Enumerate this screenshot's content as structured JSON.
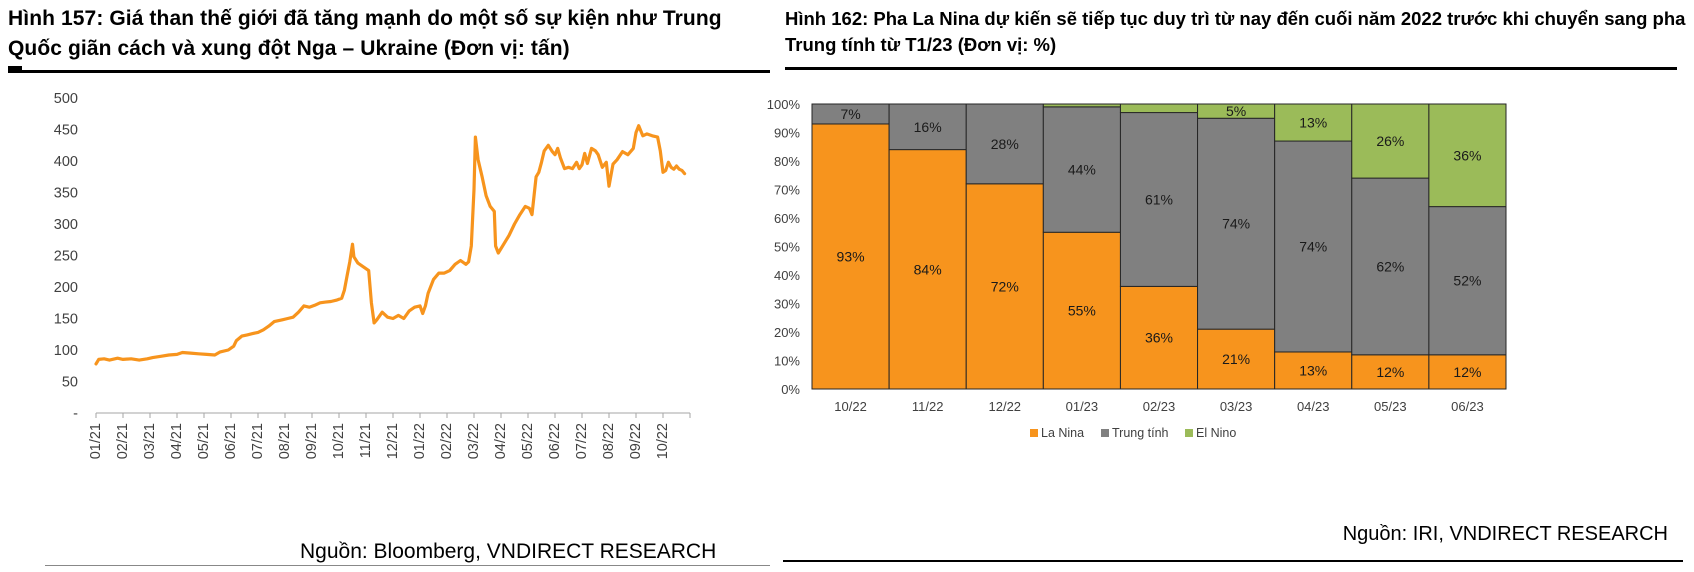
{
  "left": {
    "title": "Hình 157: Giá than thế giới đã tăng mạnh do một số sự kiện như Trung Quốc giãn cách và xung đột Nga – Ukraine (Đơn vị: tấn)",
    "source": "Nguồn: Bloomberg, VNDIRECT RESEARCH"
  },
  "right": {
    "title": "Hình 162: Pha La Nina dự kiến sẽ tiếp tục duy trì từ nay đến cuối năm 2022 trước khi chuyển sang pha Trung tính từ T1/23 (Đơn vị: %)",
    "source": "Nguồn: IRI, VNDIRECT RESEARCH"
  },
  "chart_data": [
    {
      "type": "line",
      "title": "Giá than thế giới",
      "ylabel": "tấn",
      "ylim": [
        0,
        500
      ],
      "y_ticks": [
        "-",
        "50",
        "100",
        "150",
        "200",
        "250",
        "300",
        "350",
        "400",
        "450",
        "500"
      ],
      "y_tick_values": [
        0,
        50,
        100,
        150,
        200,
        250,
        300,
        350,
        400,
        450,
        500
      ],
      "x_ticks": [
        "01/21",
        "02/21",
        "03/21",
        "04/21",
        "05/21",
        "06/21",
        "07/21",
        "08/21",
        "09/21",
        "10/21",
        "11/21",
        "12/21",
        "01/22",
        "02/22",
        "03/22",
        "04/22",
        "05/22",
        "06/22",
        "07/22",
        "08/22",
        "09/22",
        "10/22"
      ],
      "line_color": "#F7941D",
      "series": [
        {
          "name": "Giá than",
          "points": [
            [
              0.0,
              78
            ],
            [
              0.1,
              85
            ],
            [
              0.3,
              86
            ],
            [
              0.5,
              84
            ],
            [
              0.8,
              87
            ],
            [
              1.0,
              85
            ],
            [
              1.3,
              86
            ],
            [
              1.6,
              84
            ],
            [
              1.9,
              86
            ],
            [
              2.1,
              88
            ],
            [
              2.4,
              90
            ],
            [
              2.7,
              92
            ],
            [
              3.0,
              93
            ],
            [
              3.2,
              96
            ],
            [
              3.5,
              95
            ],
            [
              3.8,
              94
            ],
            [
              4.1,
              93
            ],
            [
              4.4,
              92
            ],
            [
              4.6,
              97
            ],
            [
              4.9,
              100
            ],
            [
              5.1,
              106
            ],
            [
              5.2,
              115
            ],
            [
              5.4,
              122
            ],
            [
              5.6,
              124
            ],
            [
              5.8,
              126
            ],
            [
              6.0,
              128
            ],
            [
              6.2,
              132
            ],
            [
              6.4,
              138
            ],
            [
              6.6,
              145
            ],
            [
              6.9,
              148
            ],
            [
              7.1,
              150
            ],
            [
              7.3,
              152
            ],
            [
              7.5,
              160
            ],
            [
              7.7,
              170
            ],
            [
              7.9,
              168
            ],
            [
              8.1,
              171
            ],
            [
              8.3,
              175
            ],
            [
              8.5,
              176
            ],
            [
              8.7,
              177
            ],
            [
              8.9,
              179
            ],
            [
              9.1,
              182
            ],
            [
              9.2,
              195
            ],
            [
              9.3,
              218
            ],
            [
              9.4,
              240
            ],
            [
              9.5,
              268
            ],
            [
              9.55,
              248
            ],
            [
              9.7,
              238
            ],
            [
              9.9,
              232
            ],
            [
              10.1,
              226
            ],
            [
              10.2,
              175
            ],
            [
              10.3,
              143
            ],
            [
              10.4,
              148
            ],
            [
              10.6,
              160
            ],
            [
              10.8,
              152
            ],
            [
              11.0,
              150
            ],
            [
              11.2,
              155
            ],
            [
              11.4,
              150
            ],
            [
              11.6,
              162
            ],
            [
              11.8,
              168
            ],
            [
              12.0,
              170
            ],
            [
              12.1,
              158
            ],
            [
              12.2,
              170
            ],
            [
              12.3,
              190
            ],
            [
              12.5,
              212
            ],
            [
              12.7,
              222
            ],
            [
              12.9,
              222
            ],
            [
              13.1,
              226
            ],
            [
              13.3,
              236
            ],
            [
              13.5,
              242
            ],
            [
              13.7,
              236
            ],
            [
              13.8,
              240
            ],
            [
              13.9,
              265
            ],
            [
              14.0,
              355
            ],
            [
              14.05,
              438
            ],
            [
              14.15,
              402
            ],
            [
              14.3,
              375
            ],
            [
              14.45,
              345
            ],
            [
              14.6,
              328
            ],
            [
              14.75,
              320
            ],
            [
              14.8,
              265
            ],
            [
              14.9,
              254
            ],
            [
              15.1,
              268
            ],
            [
              15.3,
              282
            ],
            [
              15.5,
              300
            ],
            [
              15.7,
              315
            ],
            [
              15.9,
              328
            ],
            [
              16.05,
              325
            ],
            [
              16.15,
              315
            ],
            [
              16.3,
              375
            ],
            [
              16.4,
              382
            ],
            [
              16.5,
              398
            ],
            [
              16.6,
              416
            ],
            [
              16.75,
              425
            ],
            [
              16.9,
              415
            ],
            [
              17.0,
              410
            ],
            [
              17.1,
              420
            ],
            [
              17.2,
              405
            ],
            [
              17.35,
              388
            ],
            [
              17.5,
              390
            ],
            [
              17.65,
              388
            ],
            [
              17.8,
              398
            ],
            [
              17.9,
              388
            ],
            [
              18.0,
              394
            ],
            [
              18.1,
              412
            ],
            [
              18.2,
              396
            ],
            [
              18.35,
              420
            ],
            [
              18.5,
              416
            ],
            [
              18.6,
              410
            ],
            [
              18.75,
              390
            ],
            [
              18.9,
              398
            ],
            [
              19.0,
              360
            ],
            [
              19.15,
              395
            ],
            [
              19.3,
              402
            ],
            [
              19.5,
              415
            ],
            [
              19.7,
              410
            ],
            [
              19.9,
              420
            ],
            [
              20.0,
              445
            ],
            [
              20.1,
              456
            ],
            [
              20.25,
              440
            ],
            [
              20.4,
              443
            ],
            [
              20.6,
              440
            ],
            [
              20.8,
              438
            ],
            [
              20.9,
              416
            ],
            [
              21.0,
              382
            ],
            [
              21.1,
              385
            ],
            [
              21.2,
              398
            ],
            [
              21.3,
              390
            ],
            [
              21.4,
              387
            ],
            [
              21.5,
              392
            ],
            [
              21.6,
              387
            ],
            [
              21.7,
              385
            ],
            [
              21.8,
              380
            ]
          ]
        }
      ]
    },
    {
      "type": "bar",
      "subtype": "stacked-100",
      "categories": [
        "10/22",
        "11/22",
        "12/22",
        "01/23",
        "02/23",
        "03/23",
        "04/23",
        "05/23",
        "06/23"
      ],
      "ylim": [
        0,
        100
      ],
      "y_ticks": [
        "0%",
        "10%",
        "20%",
        "30%",
        "40%",
        "50%",
        "60%",
        "70%",
        "80%",
        "90%",
        "100%"
      ],
      "y_tick_values": [
        0,
        10,
        20,
        30,
        40,
        50,
        60,
        70,
        80,
        90,
        100
      ],
      "series": [
        {
          "name": "La Nina",
          "color": "#F7941D",
          "values": [
            93,
            84,
            72,
            55,
            36,
            21,
            13,
            12,
            12
          ],
          "labels": [
            "93%",
            "84%",
            "72%",
            "55%",
            "36%",
            "21%",
            "13%",
            "12%",
            "12%"
          ]
        },
        {
          "name": "Trung tính",
          "color": "#808080",
          "values": [
            7,
            16,
            28,
            44,
            61,
            74,
            74,
            62,
            52
          ],
          "labels": [
            "7%",
            "16%",
            "28%",
            "44%",
            "61%",
            "74%",
            "74%",
            "62%",
            "52%"
          ]
        },
        {
          "name": "El Nino",
          "color": "#9BBB59",
          "values": [
            0,
            0,
            0,
            1,
            3,
            5,
            13,
            26,
            36
          ],
          "labels": [
            "",
            "",
            "",
            "",
            "",
            "5%",
            "13%",
            "26%",
            "36%"
          ]
        }
      ],
      "legend": [
        "La Nina",
        "Trung tính",
        "El Nino"
      ],
      "legend_position": "bottom"
    }
  ]
}
